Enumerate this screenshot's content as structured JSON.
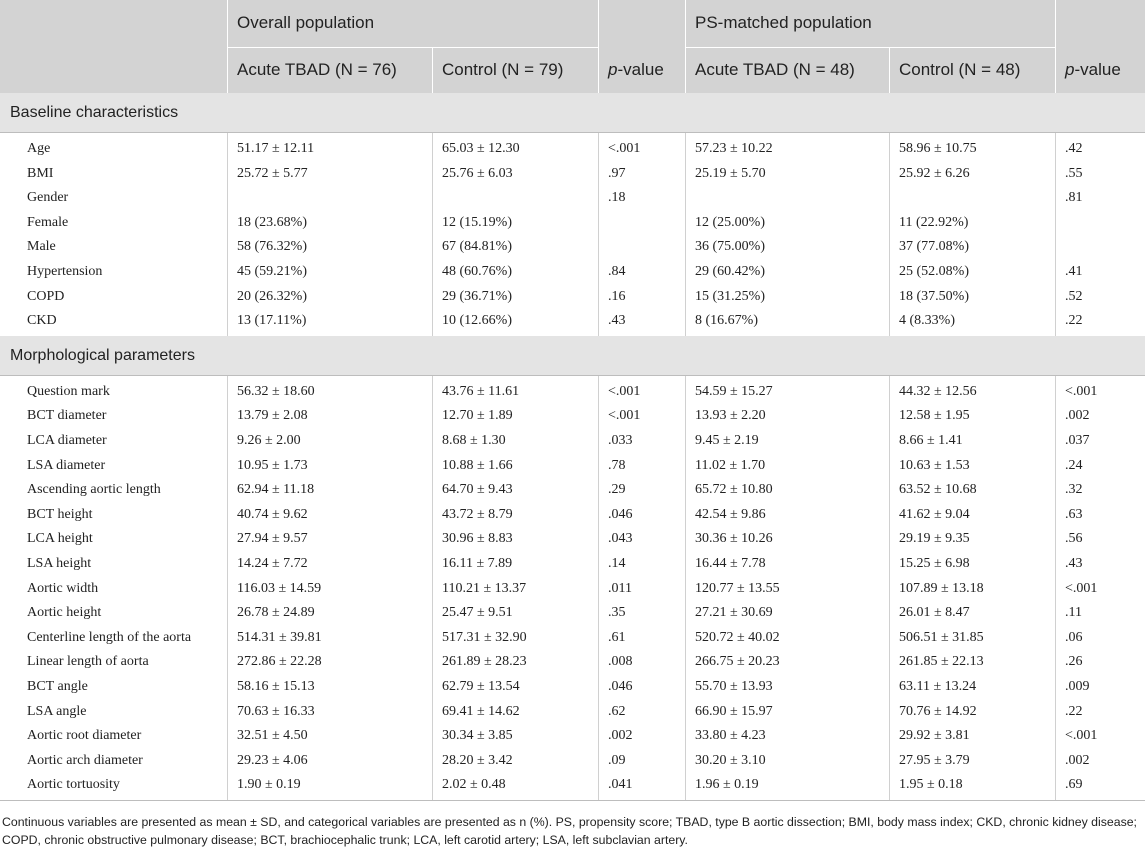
{
  "header": {
    "groups": [
      "Overall population",
      "PS-matched population"
    ],
    "columns": [
      "Acute TBAD (N = 76)",
      "Control (N = 79)",
      {
        "italic": "p",
        "rest": "-value"
      },
      "Acute TBAD (N = 48)",
      "Control (N = 48)",
      {
        "italic": "p",
        "rest": "-value"
      }
    ]
  },
  "sections": [
    {
      "title": "Baseline characteristics",
      "rows": [
        [
          "Age",
          "51.17 ± 12.11",
          "65.03 ± 12.30",
          "<.001",
          "57.23 ± 10.22",
          "58.96 ± 10.75",
          ".42"
        ],
        [
          "BMI",
          "25.72 ± 5.77",
          "25.76 ± 6.03",
          ".97",
          "25.19 ± 5.70",
          "25.92 ± 6.26",
          ".55"
        ],
        [
          "Gender",
          null,
          null,
          ".18",
          null,
          null,
          ".81"
        ],
        [
          "Female",
          "18 (23.68%)",
          "12 (15.19%)",
          null,
          "12 (25.00%)",
          "11 (22.92%)",
          null
        ],
        [
          "Male",
          "58 (76.32%)",
          "67 (84.81%)",
          null,
          "36 (75.00%)",
          "37 (77.08%)",
          null
        ],
        [
          "Hypertension",
          "45 (59.21%)",
          "48 (60.76%)",
          ".84",
          "29 (60.42%)",
          "25 (52.08%)",
          ".41"
        ],
        [
          "COPD",
          "20 (26.32%)",
          "29 (36.71%)",
          ".16",
          "15 (31.25%)",
          "18 (37.50%)",
          ".52"
        ],
        [
          "CKD",
          "13 (17.11%)",
          "10 (12.66%)",
          ".43",
          "8 (16.67%)",
          "4 (8.33%)",
          ".22"
        ]
      ]
    },
    {
      "title": "Morphological parameters",
      "rows": [
        [
          "Question mark",
          "56.32 ± 18.60",
          "43.76 ± 11.61",
          "<.001",
          "54.59 ± 15.27",
          "44.32 ± 12.56",
          "<.001"
        ],
        [
          "BCT diameter",
          "13.79 ± 2.08",
          "12.70 ± 1.89",
          "<.001",
          "13.93 ± 2.20",
          "12.58 ± 1.95",
          ".002"
        ],
        [
          "LCA diameter",
          "9.26 ± 2.00",
          "8.68 ± 1.30",
          ".033",
          "9.45 ± 2.19",
          "8.66 ± 1.41",
          ".037"
        ],
        [
          "LSA diameter",
          "10.95 ± 1.73",
          "10.88 ± 1.66",
          ".78",
          "11.02 ± 1.70",
          "10.63 ± 1.53",
          ".24"
        ],
        [
          "Ascending aortic length",
          "62.94 ± 11.18",
          "64.70 ± 9.43",
          ".29",
          "65.72 ± 10.80",
          "63.52 ± 10.68",
          ".32"
        ],
        [
          "BCT height",
          "40.74 ± 9.62",
          "43.72 ± 8.79",
          ".046",
          "42.54 ± 9.86",
          "41.62 ± 9.04",
          ".63"
        ],
        [
          "LCA height",
          "27.94 ± 9.57",
          "30.96 ± 8.83",
          ".043",
          "30.36 ± 10.26",
          "29.19 ± 9.35",
          ".56"
        ],
        [
          "LSA height",
          "14.24 ± 7.72",
          "16.11 ± 7.89",
          ".14",
          "16.44 ± 7.78",
          "15.25 ± 6.98",
          ".43"
        ],
        [
          "Aortic width",
          "116.03 ± 14.59",
          "110.21 ± 13.37",
          ".011",
          "120.77 ± 13.55",
          "107.89 ± 13.18",
          "<.001"
        ],
        [
          "Aortic height",
          "26.78 ± 24.89",
          "25.47 ± 9.51",
          ".35",
          "27.21 ± 30.69",
          "26.01 ± 8.47",
          ".11"
        ],
        [
          "Centerline length of the aorta",
          "514.31 ± 39.81",
          "517.31 ± 32.90",
          ".61",
          "520.72 ± 40.02",
          "506.51 ± 31.85",
          ".06"
        ],
        [
          "Linear length of aorta",
          "272.86 ± 22.28",
          "261.89 ± 28.23",
          ".008",
          "266.75 ± 20.23",
          "261.85 ± 22.13",
          ".26"
        ],
        [
          "BCT angle",
          "58.16 ± 15.13",
          "62.79 ± 13.54",
          ".046",
          "55.70 ± 13.93",
          "63.11 ± 13.24",
          ".009"
        ],
        [
          "LSA angle",
          "70.63 ± 16.33",
          "69.41 ± 14.62",
          ".62",
          "66.90 ± 15.97",
          "70.76 ± 14.92",
          ".22"
        ],
        [
          "Aortic root diameter",
          "32.51 ± 4.50",
          "30.34 ± 3.85",
          ".002",
          "33.80 ± 4.23",
          "29.92 ± 3.81",
          "<.001"
        ],
        [
          "Aortic arch diameter",
          "29.23 ± 4.06",
          "28.20 ± 3.42",
          ".09",
          "30.20 ± 3.10",
          "27.95 ± 3.79",
          ".002"
        ],
        [
          "Aortic tortuosity",
          "1.90 ± 0.19",
          "2.02 ± 0.48",
          ".041",
          "1.96 ± 0.19",
          "1.95 ± 0.18",
          ".69"
        ]
      ]
    }
  ],
  "footnote": "Continuous variables are presented as mean ± SD, and categorical variables are presented as n (%). PS, propensity score; TBAD, type B aortic dissection; BMI, body mass index; CKD, chronic kidney disease; COPD, chronic obstructive pulmonary disease; BCT, brachiocephalic trunk; LCA, left carotid artery; LSA, left subclavian artery."
}
